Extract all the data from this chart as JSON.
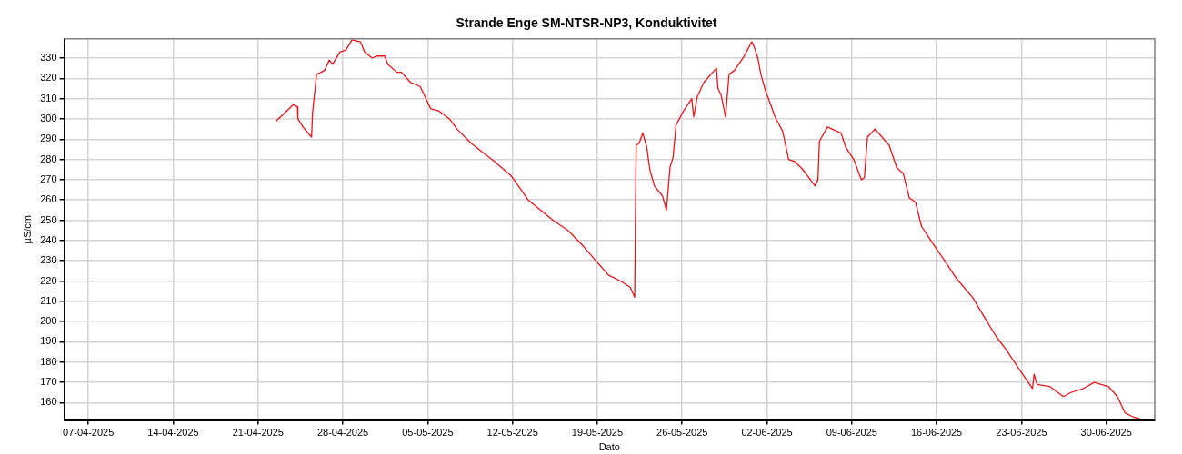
{
  "chart_data": {
    "type": "line",
    "title": "Strande Enge SM-NTSR-NP3, Konduktivitet",
    "xlabel": "Dato",
    "ylabel": "µS/cm",
    "x": [
      "2025-04-22T12:00",
      "2025-04-23T22:00",
      "2025-04-24T06:00",
      "2025-04-24T07:00",
      "2025-04-24T17:00",
      "2025-04-25T10:00",
      "2025-04-25T12:00",
      "2025-04-25T20:00",
      "2025-04-26T05:00",
      "2025-04-26T12:00",
      "2025-04-26T21:00",
      "2025-04-27T04:00",
      "2025-04-27T18:00",
      "2025-04-28T06:00",
      "2025-04-28T18:00",
      "2025-04-29T11:00",
      "2025-04-29T19:00",
      "2025-04-30T10:00",
      "2025-04-30T19:00",
      "2025-05-01T11:00",
      "2025-05-01T17:00",
      "2025-05-02T11:00",
      "2025-05-02T20:00",
      "2025-05-03T14:00",
      "2025-05-04T09:00",
      "2025-05-05T06:00",
      "2025-05-05T22:00",
      "2025-05-06T19:00",
      "2025-05-07T10:00",
      "2025-05-08T14:00",
      "2025-05-10T12:00",
      "2025-05-11T21:00",
      "2025-05-13T07:00",
      "2025-05-15T08:00",
      "2025-05-16T14:00",
      "2025-05-17T21:00",
      "2025-05-18T21:00",
      "2025-05-19T22:00",
      "2025-05-20T22:00",
      "2025-05-21T17:00",
      "2025-05-22T02:00",
      "2025-05-22T05:00",
      "2025-05-22T11:00",
      "2025-05-22T18:00",
      "2025-05-23T02:00",
      "2025-05-23T08:00",
      "2025-05-23T17:00",
      "2025-05-24T09:00",
      "2025-05-24T17:00",
      "2025-05-25T00:00",
      "2025-05-25T06:00",
      "2025-05-25T12:00",
      "2025-05-26T03:00",
      "2025-05-26T19:00",
      "2025-05-26T23:00",
      "2025-05-27T06:00",
      "2025-05-27T19:00",
      "2025-05-28T20:00",
      "2025-05-28T23:00",
      "2025-05-29T05:00",
      "2025-05-29T14:00",
      "2025-05-29T21:00",
      "2025-05-30T08:00",
      "2025-05-31T03:00",
      "2025-05-31T18:00",
      "2025-05-31T22:00",
      "2025-06-01T06:00",
      "2025-06-01T12:00",
      "2025-06-01T21:00",
      "2025-06-02T06:00",
      "2025-06-02T16:00",
      "2025-06-03T07:00",
      "2025-06-03T19:00",
      "2025-06-04T07:00",
      "2025-06-04T23:00",
      "2025-06-05T23:00",
      "2025-06-06T05:00",
      "2025-06-06T08:00",
      "2025-06-07T00:00",
      "2025-06-08T03:00",
      "2025-06-08T12:00",
      "2025-06-09T04:00",
      "2025-06-09T19:00",
      "2025-06-10T01:00",
      "2025-06-10T07:00",
      "2025-06-10T22:00",
      "2025-06-12T02:00",
      "2025-06-12T17:00",
      "2025-06-13T06:00",
      "2025-06-13T18:00",
      "2025-06-14T06:00",
      "2025-06-14T18:00",
      "2025-06-15T18:00",
      "2025-06-16T16:00",
      "2025-06-17T16:00",
      "2025-06-18T23:00",
      "2025-06-19T23:00",
      "2025-06-20T21:00",
      "2025-06-21T18:00",
      "2025-06-22T18:00",
      "2025-06-23T22:00",
      "2025-06-24T01:00",
      "2025-06-24T07:00",
      "2025-06-25T08:00",
      "2025-06-26T11:00",
      "2025-06-27T02:00",
      "2025-06-28T03:00",
      "2025-06-29T00:00",
      "2025-06-30T04:00",
      "2025-06-30T22:00",
      "2025-07-01T13:00",
      "2025-07-02T05:00",
      "2025-07-02T20:00"
    ],
    "series": [
      {
        "color": "#e8141c",
        "values": [
          299,
          307,
          306,
          300,
          296,
          291,
          303,
          322,
          323,
          324,
          329,
          327,
          333,
          334,
          339,
          338,
          333,
          330,
          331,
          331,
          327,
          323,
          323,
          318,
          316,
          305,
          304,
          300,
          295,
          288,
          279,
          272,
          260,
          250,
          245,
          237,
          230,
          223,
          220,
          217,
          212,
          287,
          288,
          293,
          286,
          275,
          267,
          262,
          255,
          276,
          281,
          297,
          304,
          310,
          301,
          311,
          318,
          325,
          315,
          312,
          301,
          322,
          324,
          331,
          338,
          336,
          330,
          322,
          314,
          308,
          301,
          294,
          280,
          279,
          275,
          267,
          270,
          289,
          296,
          293,
          286,
          280,
          270,
          271,
          291,
          295,
          287,
          276,
          273,
          261,
          259,
          247,
          238,
          230,
          221,
          212,
          202,
          193,
          186,
          177,
          167,
          174,
          169,
          168,
          163,
          165,
          167,
          170,
          168,
          163,
          155,
          153,
          152
        ]
      }
    ],
    "xlim": [
      "2025-04-05",
      "2025-07-04"
    ],
    "xticks": [
      {
        "value": "2025-04-07",
        "label": "07-04-2025"
      },
      {
        "value": "2025-04-14",
        "label": "14-04-2025"
      },
      {
        "value": "2025-04-21",
        "label": "21-04-2025"
      },
      {
        "value": "2025-04-28",
        "label": "28-04-2025"
      },
      {
        "value": "2025-05-05",
        "label": "05-05-2025"
      },
      {
        "value": "2025-05-12",
        "label": "12-05-2025"
      },
      {
        "value": "2025-05-19",
        "label": "19-05-2025"
      },
      {
        "value": "2025-05-26",
        "label": "26-05-2025"
      },
      {
        "value": "2025-06-02",
        "label": "02-06-2025"
      },
      {
        "value": "2025-06-09",
        "label": "09-06-2025"
      },
      {
        "value": "2025-06-16",
        "label": "16-06-2025"
      },
      {
        "value": "2025-06-23",
        "label": "23-06-2025"
      },
      {
        "value": "2025-06-30",
        "label": "30-06-2025"
      }
    ],
    "ylim": [
      151.4,
      339.5
    ],
    "yticks": [
      160,
      170,
      180,
      190,
      200,
      210,
      220,
      230,
      240,
      250,
      260,
      270,
      280,
      290,
      300,
      310,
      320,
      330
    ],
    "grid": true,
    "legend": false,
    "marker": "none",
    "line_style": "solid"
  }
}
